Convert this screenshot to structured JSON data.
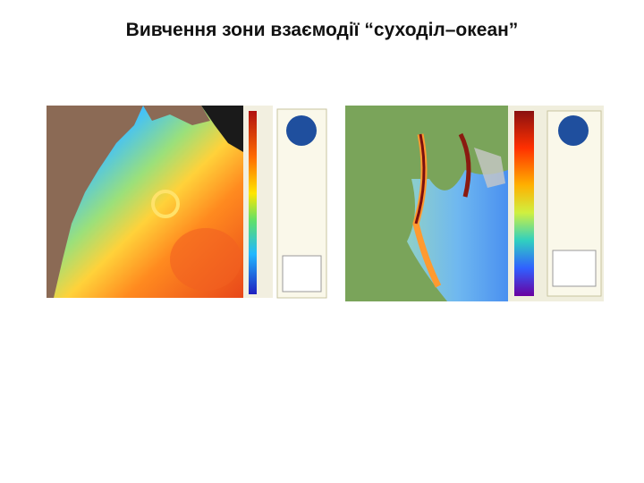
{
  "header": {
    "title": "Вивчення зони взаємодії “суходіл–океан”"
  }
}
